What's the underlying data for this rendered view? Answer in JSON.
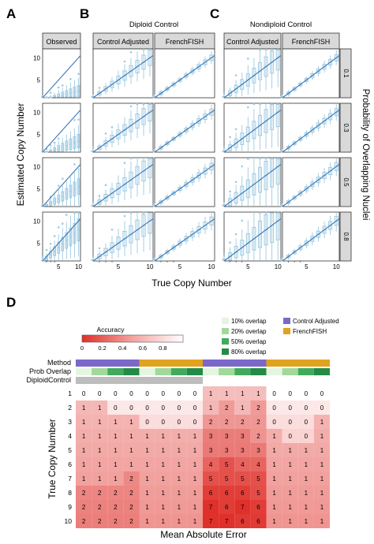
{
  "panel_letters": {
    "a": "A",
    "b": "B",
    "c": "C",
    "d": "D"
  },
  "group_titles": {
    "diploid": "Diploid Control",
    "nondiploid": "Nondiploid Control"
  },
  "facet_labels": {
    "observed": "Observed",
    "control_adjusted_b": "Control Adjusted",
    "frenchfish_b": "FrenchFISH",
    "control_adjusted_c": "Control Adjusted",
    "frenchfish_c": "FrenchFISH"
  },
  "strip_labels": [
    "0.1",
    "0.3",
    "0.5",
    "0.8"
  ],
  "axis_labels": {
    "x": "True Copy Number",
    "y": "Estimated Copy Number",
    "right": "Probability of Overlapping Nuclei"
  },
  "tick_labels": {
    "x": [
      "5",
      "10"
    ],
    "y": [
      "5",
      "10"
    ]
  },
  "colors": {
    "box": "#9ecae1",
    "line": "#3a78b8",
    "strip": "#d9d9d9",
    "adjusted": "#7b68c8",
    "frenchfish": "#e0a31e",
    "overlap10": "#e5f5e0",
    "overlap20": "#a1d99b",
    "overlap50": "#41ab5d",
    "overlap80": "#238b45",
    "diploid": "#bdbdbd",
    "nondiploid": "#ffffff"
  },
  "heatmap": {
    "legend_title": "Accuracy",
    "legend_ticks": [
      "0",
      "0.2",
      "0.4",
      "0.6",
      "0.8"
    ],
    "legend_items": [
      "10% overlap",
      "20% overlap",
      "50% overlap",
      "80% overlap",
      "Control Adjusted",
      "FrenchFISH"
    ],
    "row_annotations": [
      "Method",
      "Prob Overlap",
      "DiploidControl"
    ],
    "ylabel": "True Copy Number",
    "xlabel": "Mean Absolute Error",
    "row_labels": [
      "1",
      "2",
      "3",
      "4",
      "5",
      "6",
      "7",
      "8",
      "9",
      "10"
    ]
  },
  "chart_data": [
    {
      "type": "box",
      "panel": "A-C",
      "facets_columns": [
        "Observed",
        "Control Adjusted",
        "FrenchFISH",
        "Control Adjusted",
        "FrenchFISH"
      ],
      "facets_rows": [
        "0.1",
        "0.3",
        "0.5",
        "0.8"
      ],
      "x": [
        1,
        2,
        3,
        4,
        5,
        6,
        7,
        8,
        9,
        10
      ],
      "xlim": [
        1,
        10.5
      ],
      "ylim": [
        1,
        12
      ],
      "reference_line": "y = x",
      "observed_median_slope": [
        0.25,
        0.35,
        0.55,
        0.8
      ],
      "box_spread": {
        "Observed": [
          0.25,
          0.3,
          0.35,
          0.5
        ],
        "Control Adjusted (Diploid)": [
          0.35,
          0.4,
          0.5,
          0.55
        ],
        "FrenchFISH (Diploid)": [
          0.12,
          0.14,
          0.15,
          0.18
        ],
        "Control Adjusted (Nondiploid)": [
          0.55,
          0.65,
          0.8,
          0.85
        ],
        "FrenchFISH (Nondiploid)": [
          0.14,
          0.16,
          0.18,
          0.2
        ]
      }
    },
    {
      "type": "heatmap",
      "panel": "D",
      "title": "Accuracy",
      "ylabel": "True Copy Number",
      "xlabel": "Mean Absolute Error",
      "rows": [
        "1",
        "2",
        "3",
        "4",
        "5",
        "6",
        "7",
        "8",
        "9",
        "10"
      ],
      "column_groups": [
        {
          "method": "Control Adjusted",
          "diploid_control": true,
          "overlaps": [
            "10%",
            "20%",
            "50%",
            "80%"
          ]
        },
        {
          "method": "FrenchFISH",
          "diploid_control": true,
          "overlaps": [
            "10%",
            "20%",
            "50%",
            "80%"
          ]
        },
        {
          "method": "Control Adjusted",
          "diploid_control": false,
          "overlaps": [
            "10%",
            "20%",
            "50%",
            "80%"
          ]
        },
        {
          "method": "FrenchFISH",
          "diploid_control": false,
          "overlaps": [
            "10%",
            "20%",
            "50%",
            "80%"
          ]
        }
      ],
      "values": [
        [
          0,
          0,
          0,
          0,
          0,
          0,
          0,
          0,
          1,
          1,
          1,
          1,
          0,
          0,
          0,
          0
        ],
        [
          1,
          1,
          0,
          0,
          0,
          0,
          0,
          0,
          1,
          2,
          1,
          2,
          0,
          0,
          0,
          0
        ],
        [
          1,
          1,
          1,
          1,
          0,
          0,
          0,
          0,
          2,
          2,
          2,
          2,
          0,
          0,
          0,
          1
        ],
        [
          1,
          1,
          1,
          1,
          1,
          1,
          1,
          1,
          3,
          3,
          3,
          2,
          1,
          0,
          0,
          1
        ],
        [
          1,
          1,
          1,
          1,
          1,
          1,
          1,
          1,
          3,
          3,
          3,
          3,
          1,
          1,
          1,
          1
        ],
        [
          1,
          1,
          1,
          1,
          1,
          1,
          1,
          1,
          4,
          5,
          4,
          4,
          1,
          1,
          1,
          1
        ],
        [
          1,
          1,
          1,
          2,
          1,
          1,
          1,
          1,
          5,
          5,
          5,
          5,
          1,
          1,
          1,
          1
        ],
        [
          2,
          2,
          2,
          2,
          1,
          1,
          1,
          1,
          6,
          6,
          6,
          5,
          1,
          1,
          1,
          1
        ],
        [
          2,
          2,
          2,
          2,
          1,
          1,
          1,
          1,
          7,
          6,
          7,
          6,
          1,
          1,
          1,
          1
        ],
        [
          2,
          2,
          2,
          2,
          1,
          1,
          1,
          1,
          7,
          7,
          6,
          6,
          1,
          1,
          1,
          1
        ]
      ],
      "legend": {
        "ticks": [
          0,
          0.2,
          0.4,
          0.6,
          0.8
        ],
        "range": [
          0,
          1
        ]
      }
    }
  ]
}
